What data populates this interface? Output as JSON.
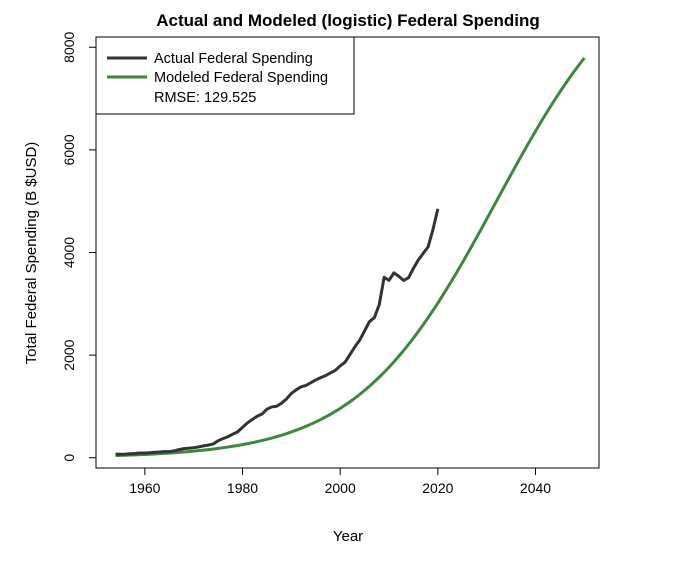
{
  "chart_data": {
    "type": "line",
    "title": "Actual and Modeled (logistic) Federal Spending",
    "xlabel": "Year",
    "ylabel": "Total Federal Spending (B $USD)",
    "xlim": [
      1950,
      2053
    ],
    "ylim": [
      -200,
      8200
    ],
    "x_ticks": [
      1960,
      1980,
      2000,
      2020,
      2040
    ],
    "y_ticks": [
      0,
      2000,
      4000,
      6000,
      8000
    ],
    "grid": false,
    "legend_position": "top-left",
    "legend": {
      "actual_label": "Actual Federal Spending",
      "modeled_label": "Modeled Federal Spending",
      "rmse_label": "RMSE: 129.525"
    },
    "series": [
      {
        "name": "Actual Federal Spending",
        "color": "#333333",
        "points": [
          [
            1954,
            71
          ],
          [
            1955,
            68
          ],
          [
            1956,
            71
          ],
          [
            1957,
            77
          ],
          [
            1958,
            82
          ],
          [
            1959,
            92
          ],
          [
            1960,
            92
          ],
          [
            1961,
            98
          ],
          [
            1962,
            106
          ],
          [
            1963,
            111
          ],
          [
            1964,
            119
          ],
          [
            1965,
            118
          ],
          [
            1966,
            135
          ],
          [
            1967,
            158
          ],
          [
            1968,
            178
          ],
          [
            1969,
            184
          ],
          [
            1970,
            196
          ],
          [
            1971,
            210
          ],
          [
            1972,
            231
          ],
          [
            1973,
            246
          ],
          [
            1974,
            269
          ],
          [
            1975,
            332
          ],
          [
            1976,
            372
          ],
          [
            1977,
            409
          ],
          [
            1978,
            459
          ],
          [
            1979,
            504
          ],
          [
            1980,
            591
          ],
          [
            1981,
            678
          ],
          [
            1982,
            746
          ],
          [
            1983,
            808
          ],
          [
            1984,
            852
          ],
          [
            1985,
            946
          ],
          [
            1986,
            990
          ],
          [
            1987,
            1004
          ],
          [
            1988,
            1065
          ],
          [
            1989,
            1144
          ],
          [
            1990,
            1253
          ],
          [
            1991,
            1324
          ],
          [
            1992,
            1382
          ],
          [
            1993,
            1410
          ],
          [
            1994,
            1462
          ],
          [
            1995,
            1516
          ],
          [
            1996,
            1561
          ],
          [
            1997,
            1601
          ],
          [
            1998,
            1652
          ],
          [
            1999,
            1702
          ],
          [
            2000,
            1789
          ],
          [
            2001,
            1863
          ],
          [
            2002,
            2011
          ],
          [
            2003,
            2160
          ],
          [
            2004,
            2293
          ],
          [
            2005,
            2472
          ],
          [
            2006,
            2655
          ],
          [
            2007,
            2729
          ],
          [
            2008,
            2983
          ],
          [
            2009,
            3518
          ],
          [
            2010,
            3457
          ],
          [
            2011,
            3603
          ],
          [
            2012,
            3537
          ],
          [
            2013,
            3455
          ],
          [
            2014,
            3506
          ],
          [
            2015,
            3692
          ],
          [
            2016,
            3853
          ],
          [
            2017,
            3982
          ],
          [
            2018,
            4109
          ],
          [
            2019,
            4447
          ],
          [
            2020,
            4850
          ]
        ]
      },
      {
        "name": "Modeled Federal Spending",
        "color": "#3a8a3a",
        "model": {
          "type": "logistic",
          "L": 10000,
          "k": 0.07,
          "x0": 2032,
          "x_start": 1954,
          "x_end": 2050
        }
      }
    ]
  }
}
